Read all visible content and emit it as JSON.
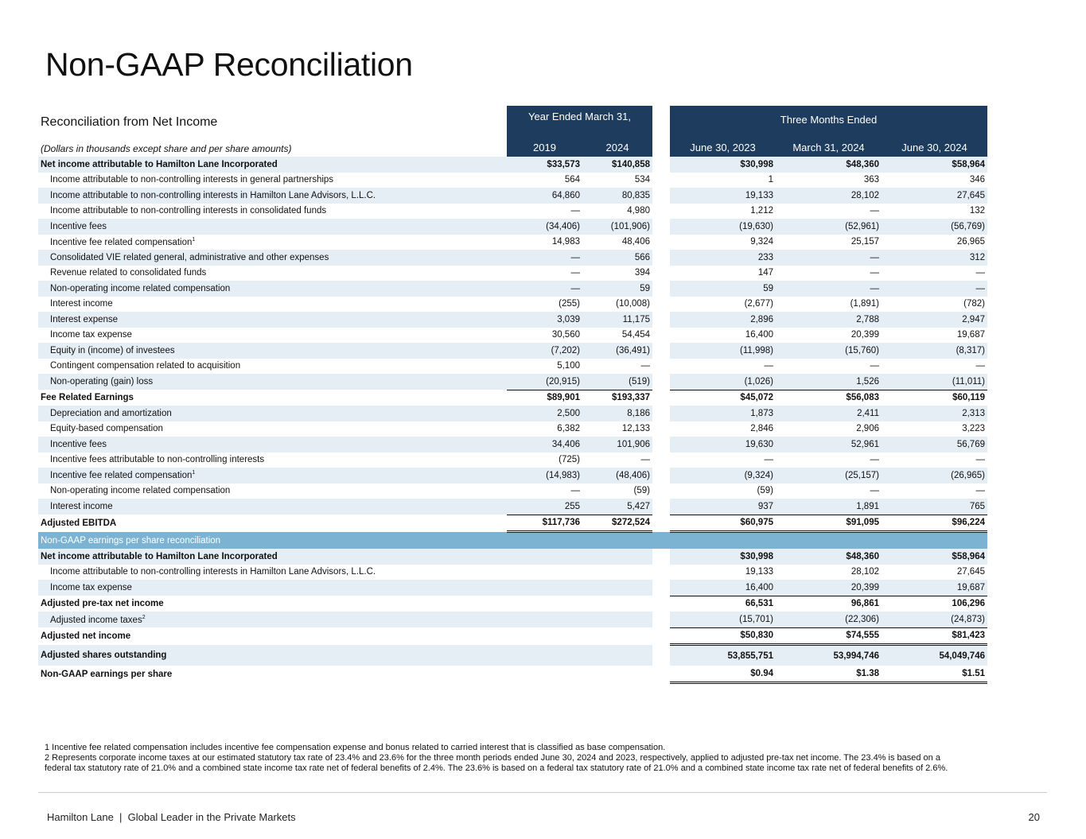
{
  "title": "Non-GAAP Reconciliation",
  "table": {
    "heading": "Reconciliation from Net Income",
    "subheading": "(Dollars in thousands except share and per share amounts)",
    "group_headers": [
      "Year Ended March 31,",
      "Three Months Ended"
    ],
    "columns": [
      "2019",
      "2024",
      "June 30, 2023",
      "March 31, 2024",
      "June 30, 2024"
    ],
    "rows": [
      {
        "label": "Net income attributable to Hamilton Lane Incorporated",
        "cells": [
          "$33,573",
          "$140,858",
          "$30,998",
          "$48,360",
          "$58,964"
        ],
        "bold": true
      },
      {
        "label": "Income attributable to non-controlling interests in general partnerships",
        "cells": [
          "564",
          "534",
          "1",
          "363",
          "346"
        ]
      },
      {
        "label": "Income attributable to non-controlling interests in Hamilton Lane Advisors, L.L.C.",
        "cells": [
          "64,860",
          "80,835",
          "19,133",
          "28,102",
          "27,645"
        ]
      },
      {
        "label": "Income attributable to non-controlling interests in consolidated funds",
        "cells": [
          "—",
          "4,980",
          "1,212",
          "—",
          "132"
        ]
      },
      {
        "label": "Incentive fees",
        "cells": [
          "(34,406)",
          "(101,906)",
          "(19,630)",
          "(52,961)",
          "(56,769)"
        ]
      },
      {
        "label": "Incentive fee related compensation",
        "sup": "1",
        "cells": [
          "14,983",
          "48,406",
          "9,324",
          "25,157",
          "26,965"
        ]
      },
      {
        "label": "Consolidated VIE related general, administrative and other expenses",
        "cells": [
          "—",
          "566",
          "233",
          "—",
          "312"
        ]
      },
      {
        "label": "Revenue related to consolidated funds",
        "cells": [
          "—",
          "394",
          "147",
          "—",
          "—"
        ]
      },
      {
        "label": "Non-operating income related compensation",
        "cells": [
          "—",
          "59",
          "59",
          "—",
          "—"
        ]
      },
      {
        "label": "Interest income",
        "cells": [
          "(255)",
          "(10,008)",
          "(2,677)",
          "(1,891)",
          "(782)"
        ]
      },
      {
        "label": "Interest expense",
        "cells": [
          "3,039",
          "11,175",
          "2,896",
          "2,788",
          "2,947"
        ]
      },
      {
        "label": "Income tax expense",
        "cells": [
          "30,560",
          "54,454",
          "16,400",
          "20,399",
          "19,687"
        ]
      },
      {
        "label": "Equity in (income) of investees",
        "cells": [
          "(7,202)",
          "(36,491)",
          "(11,998)",
          "(15,760)",
          "(8,317)"
        ]
      },
      {
        "label": "Contingent compensation related to acquisition",
        "cells": [
          "5,100",
          "—",
          "—",
          "—",
          "—"
        ]
      },
      {
        "label": "Non-operating (gain) loss",
        "cells": [
          "(20,915)",
          "(519)",
          "(1,026)",
          "1,526",
          "(11,011)"
        ]
      },
      {
        "label": "Fee Related Earnings",
        "cells": [
          "$89,901",
          "$193,337",
          "$45,072",
          "$56,083",
          "$60,119"
        ],
        "bold": true,
        "line_above": true
      },
      {
        "label": "Depreciation and amortization",
        "cells": [
          "2,500",
          "8,186",
          "1,873",
          "2,411",
          "2,313"
        ]
      },
      {
        "label": "Equity-based compensation",
        "cells": [
          "6,382",
          "12,133",
          "2,846",
          "2,906",
          "3,223"
        ]
      },
      {
        "label": "Incentive fees",
        "cells": [
          "34,406",
          "101,906",
          "19,630",
          "52,961",
          "56,769"
        ]
      },
      {
        "label": "Incentive fees attributable to non-controlling interests",
        "cells": [
          "(725)",
          "—",
          "—",
          "—",
          "—"
        ]
      },
      {
        "label": "Incentive fee related compensation",
        "sup": "1",
        "cells": [
          "(14,983)",
          "(48,406)",
          "(9,324)",
          "(25,157)",
          "(26,965)"
        ]
      },
      {
        "label": "Non-operating income related compensation",
        "cells": [
          "—",
          "(59)",
          "(59)",
          "—",
          "—"
        ]
      },
      {
        "label": "Interest income",
        "cells": [
          "255",
          "5,427",
          "937",
          "1,891",
          "765"
        ]
      },
      {
        "label": "Adjusted EBITDA",
        "cells": [
          "$117,736",
          "$272,524",
          "$60,975",
          "$91,095",
          "$96,224"
        ],
        "bold": true,
        "line_above": true,
        "double_below": true
      }
    ],
    "section_label": "Non-GAAP earnings per share reconciliation",
    "eps_rows": [
      {
        "label": "Net income attributable to Hamilton Lane Incorporated",
        "cells": [
          "$30,998",
          "$48,360",
          "$58,964"
        ],
        "bold": true
      },
      {
        "label": "Income attributable to non-controlling interests in Hamilton Lane Advisors, L.L.C.",
        "cells": [
          "19,133",
          "28,102",
          "27,645"
        ]
      },
      {
        "label": "Income tax expense",
        "cells": [
          "16,400",
          "20,399",
          "19,687"
        ]
      },
      {
        "label": "Adjusted pre-tax net income",
        "cells": [
          "66,531",
          "96,861",
          "106,296"
        ],
        "bold": true,
        "line_above": true
      },
      {
        "label": "Adjusted income taxes",
        "sup": "2",
        "cells": [
          "(15,701)",
          "(22,306)",
          "(24,873)"
        ]
      },
      {
        "label": "Adjusted net income",
        "cells": [
          "$50,830",
          "$74,555",
          "$81,423"
        ],
        "bold": true,
        "line_above": true,
        "double_below": true
      },
      {
        "label": "Adjusted shares outstanding",
        "cells": [
          "53,855,751",
          "53,994,746",
          "54,049,746"
        ],
        "bold": true,
        "tall": true
      },
      {
        "label": "Non-GAAP earnings per share",
        "cells": [
          "$0.94",
          "$1.38",
          "$1.51"
        ],
        "bold": true,
        "double_below": true
      }
    ]
  },
  "footnotes": [
    "1 Incentive fee related compensation includes incentive fee compensation expense and bonus related to carried interest that is classified as base compensation.",
    "2 Represents corporate income taxes at our estimated statutory tax rate of 23.4% and 23.6% for the three month periods ended June 30, 2024 and 2023, respectively, applied to adjusted pre-tax net income. The 23.4% is based on a federal tax statutory rate of 21.0% and a combined state income tax rate net of federal benefits of 2.4%. The 23.6% is based on a federal tax statutory rate of 21.0% and a combined state income tax rate net of federal benefits of 2.6%."
  ],
  "footer": {
    "company": "Hamilton Lane",
    "tagline": "Global Leader in the Private Markets",
    "page": "20"
  }
}
